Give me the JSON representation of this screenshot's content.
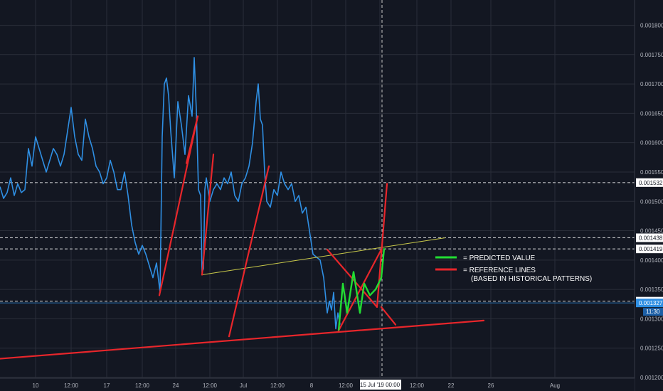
{
  "colors": {
    "background": "#131722",
    "grid": "#2a2e39",
    "price_line": "#2f8fe3",
    "reference_line": "#e8262b",
    "predicted_line": "#22dd33",
    "trend_line": "#c9c94a",
    "level_line": "#ffffff",
    "current_price_line": "#2f8fe3"
  },
  "chart_data": {
    "type": "line",
    "ylim": [
      0.0012,
      0.00182
    ],
    "y_ticks": [
      "0.001200",
      "0.001250",
      "0.001300",
      "0.001350",
      "0.001400",
      "0.001450",
      "0.001500",
      "0.001550",
      "0.001600",
      "0.001650",
      "0.001700",
      "0.001750",
      "0.001800"
    ],
    "x_ticks": [
      "10",
      "12:00",
      "17",
      "12:00",
      "24",
      "12:00",
      "Jul",
      "12:00",
      "8",
      "12:00",
      "15 Jul '19  00:00",
      "12:00",
      "22",
      "26",
      "Aug"
    ],
    "crosshair_label": "15 Jul '19  00:00",
    "price_series": {
      "x": [
        0,
        5,
        10,
        15,
        20,
        25,
        30,
        35,
        40,
        45,
        50,
        55,
        60,
        65,
        70,
        75,
        80,
        85,
        90,
        95,
        100,
        105,
        110,
        115,
        120,
        125,
        130,
        135,
        140,
        145,
        150,
        155,
        160,
        165,
        170,
        175,
        180,
        185,
        190,
        195,
        200,
        205,
        210,
        215,
        220,
        225,
        228,
        231,
        234,
        237,
        240,
        245,
        250,
        255,
        260,
        265,
        270,
        273,
        276,
        279,
        282,
        284,
        286,
        288,
        290,
        295,
        300,
        305,
        310,
        315,
        320,
        325,
        330,
        335,
        340,
        345,
        350,
        355,
        360,
        363,
        366,
        369,
        372,
        375,
        380,
        385,
        390,
        395,
        400,
        405,
        410,
        415,
        420,
        425,
        430,
        435,
        440,
        445,
        450,
        455,
        460,
        463,
        466,
        469,
        472,
        475,
        478
      ],
      "y": [
        0.001525,
        0.001505,
        0.001515,
        0.00154,
        0.00151,
        0.00153,
        0.001515,
        0.00152,
        0.00159,
        0.00156,
        0.00161,
        0.00159,
        0.00157,
        0.00155,
        0.00157,
        0.00159,
        0.00158,
        0.00156,
        0.00158,
        0.00162,
        0.00166,
        0.00161,
        0.00158,
        0.00157,
        0.00164,
        0.00161,
        0.00159,
        0.00156,
        0.00155,
        0.00153,
        0.00154,
        0.00157,
        0.00155,
        0.00152,
        0.00152,
        0.00155,
        0.00151,
        0.00146,
        0.00143,
        0.00141,
        0.001425,
        0.00141,
        0.00139,
        0.00137,
        0.001395,
        0.001345,
        0.00161,
        0.0017,
        0.00171,
        0.00168,
        0.00162,
        0.00154,
        0.00167,
        0.00163,
        0.00158,
        0.00168,
        0.001645,
        0.001745,
        0.001655,
        0.00152,
        0.00151,
        0.00138,
        0.001385,
        0.00152,
        0.00154,
        0.0015,
        0.00152,
        0.00153,
        0.00152,
        0.00154,
        0.00153,
        0.00155,
        0.00151,
        0.0015,
        0.00153,
        0.00154,
        0.00156,
        0.0016,
        0.00167,
        0.0017,
        0.00164,
        0.00163,
        0.00155,
        0.0015,
        0.00149,
        0.00152,
        0.00151,
        0.00155,
        0.00153,
        0.00152,
        0.00153,
        0.0015,
        0.00151,
        0.00148,
        0.00149,
        0.00145,
        0.00141,
        0.001405,
        0.0014,
        0.00137,
        0.00131,
        0.00133,
        0.001315,
        0.001345,
        0.001283,
        0.00131,
        0.00129
      ]
    },
    "predicted_series": {
      "x": [
        476,
        482,
        488,
        497,
        506,
        512,
        520,
        528,
        536,
        540
      ],
      "y": [
        0.00128,
        0.00136,
        0.00131,
        0.00138,
        0.00131,
        0.00136,
        0.00134,
        0.00135,
        0.00137,
        0.00142
      ]
    },
    "reference_lines": [
      {
        "x": [
          0,
          680
        ],
        "y": [
          0.001232,
          0.001297
        ]
      },
      {
        "x": [
          224,
          278
        ],
        "y": [
          0.00134,
          0.001645
        ]
      },
      {
        "x": [
          262,
          278
        ],
        "y": [
          0.001565,
          0.001645
        ]
      },
      {
        "x": [
          322,
          378
        ],
        "y": [
          0.00127,
          0.00156
        ]
      },
      {
        "x": [
          284,
          300
        ],
        "y": [
          0.001375,
          0.00158
        ]
      },
      {
        "x": [
          476,
          536
        ],
        "y": [
          0.00128,
          0.001418
        ]
      },
      {
        "x": [
          460,
          530
        ],
        "y": [
          0.001418,
          0.00132
        ]
      },
      {
        "x": [
          536,
          556
        ],
        "y": [
          0.00132,
          0.00129
        ]
      },
      {
        "x": [
          530,
          544
        ],
        "y": [
          0.00132,
          0.00153
        ]
      }
    ],
    "trend_line": {
      "x": [
        284,
        626
      ],
      "y": [
        0.001375,
        0.001438
      ]
    },
    "horizontal_levels": [
      {
        "label": "0.001532",
        "y": 0.001532
      },
      {
        "label": "0.001438",
        "y": 0.001438
      },
      {
        "label": "0.001419",
        "y": 0.001419
      },
      {
        "label": "0.001330",
        "y": 0.00133
      }
    ],
    "current_price": {
      "label": "0.001327",
      "y": 0.001327
    },
    "time_label": "11:30",
    "crosshair_x": 537,
    "legend": [
      {
        "label": "= PREDICTED VALUE",
        "color": "#22dd33"
      },
      {
        "label": "= REFERENCE LINES",
        "color": "#e8262b"
      },
      {
        "label": "(BASED IN HISTORICAL PATTERNS)",
        "color": ""
      }
    ]
  }
}
